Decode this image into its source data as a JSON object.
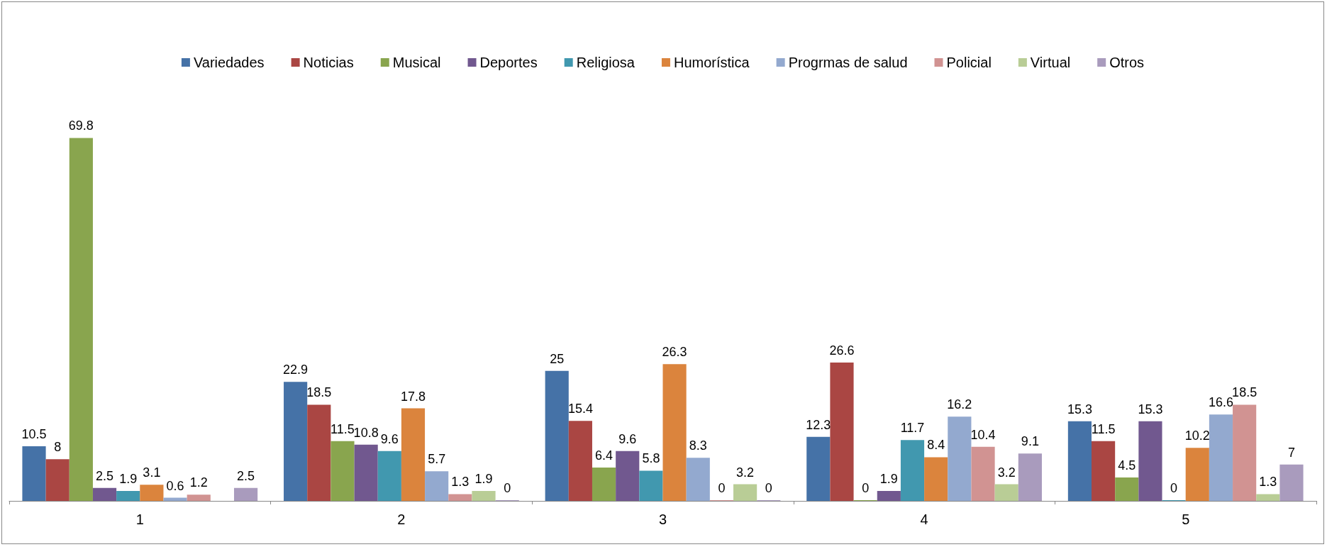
{
  "chart_data": {
    "type": "bar",
    "categories": [
      "1",
      "2",
      "3",
      "4",
      "5"
    ],
    "series": [
      {
        "name": "Variedades",
        "color": "#4572a7",
        "values": [
          10.5,
          22.9,
          25,
          12.3,
          15.3
        ],
        "value_labels": [
          "10.5",
          "22.9",
          "25",
          "12.3",
          "15.3"
        ]
      },
      {
        "name": "Noticias",
        "color": "#aa4643",
        "values": [
          8,
          18.5,
          15.4,
          26.6,
          11.5
        ],
        "value_labels": [
          "8",
          "18.5",
          "15.4",
          "26.6",
          "11.5"
        ]
      },
      {
        "name": "Musical",
        "color": "#89a54e",
        "values": [
          69.8,
          11.5,
          6.4,
          0,
          4.5
        ],
        "value_labels": [
          "69.8",
          "11.5",
          "6.4",
          "0",
          "4.5"
        ]
      },
      {
        "name": "Deportes",
        "color": "#71588f",
        "values": [
          2.5,
          10.8,
          9.6,
          1.9,
          15.3
        ],
        "value_labels": [
          "2.5",
          "10.8",
          "9.6",
          "1.9",
          "15.3"
        ]
      },
      {
        "name": "Religiosa",
        "color": "#4198af",
        "values": [
          1.9,
          9.6,
          5.8,
          11.7,
          0
        ],
        "value_labels": [
          "1.9",
          "9.6",
          "5.8",
          "11.7",
          "0"
        ]
      },
      {
        "name": "Humorística",
        "color": "#db843d",
        "values": [
          3.1,
          17.8,
          26.3,
          8.4,
          10.2
        ],
        "value_labels": [
          "3.1",
          "17.8",
          "26.3",
          "8.4",
          "10.2"
        ]
      },
      {
        "name": "Progrmas de salud",
        "color": "#93a9cf",
        "values": [
          0.6,
          5.7,
          8.3,
          16.2,
          16.6
        ],
        "value_labels": [
          "0.6",
          "5.7",
          "8.3",
          "16.2",
          "16.6"
        ]
      },
      {
        "name": "Policial",
        "color": "#d19392",
        "values": [
          1.2,
          1.3,
          0,
          10.4,
          18.5
        ],
        "value_labels": [
          "1.2",
          "1.3",
          "0",
          "10.4",
          "18.5"
        ]
      },
      {
        "name": "Virtual",
        "color": "#b9cd96",
        "values": [
          null,
          1.9,
          3.2,
          3.2,
          1.3
        ],
        "value_labels": [
          null,
          "1.9",
          "3.2",
          "3.2",
          "1.3"
        ]
      },
      {
        "name": "Otros",
        "color": "#a99bbd",
        "values": [
          2.5,
          0,
          0,
          9.1,
          7
        ],
        "value_labels": [
          "2.5",
          "0",
          "0",
          "9.1",
          "7"
        ]
      }
    ],
    "legend": "top",
    "grid": false
  }
}
